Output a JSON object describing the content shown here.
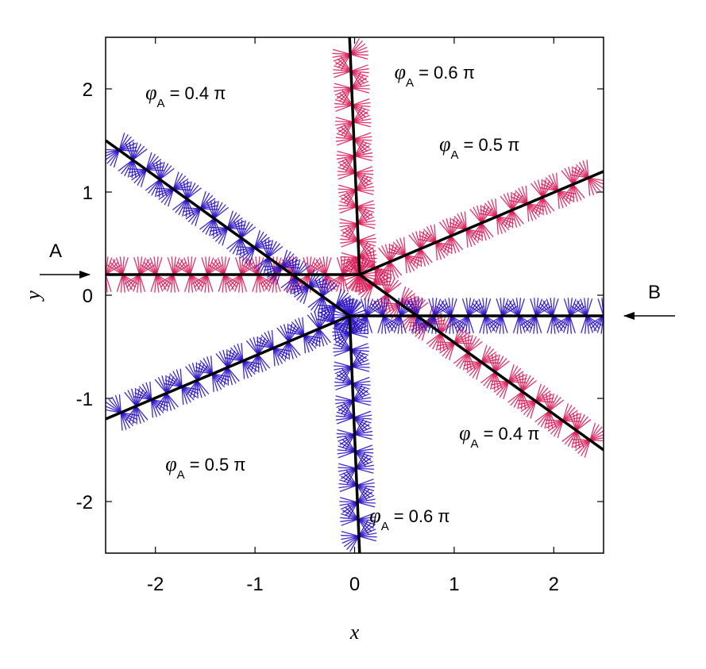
{
  "chart_data": {
    "type": "line",
    "xlabel": "x",
    "ylabel": "y",
    "xlim": [
      -2.5,
      2.5
    ],
    "ylim": [
      -2.5,
      2.5
    ],
    "xticks": [
      -2,
      -1,
      0,
      1,
      2
    ],
    "yticks": [
      -2,
      -1,
      0,
      1,
      2
    ],
    "xtick_labels": [
      "-2",
      "-1",
      "0",
      "1",
      "2"
    ],
    "ytick_labels": [
      "-2",
      "-1",
      "0",
      "1",
      "2"
    ],
    "grid": false,
    "colors": {
      "A": "#dc1e5a",
      "B": "#2a12c8",
      "line": "#000000"
    },
    "beams": [
      {
        "name": "A",
        "direction": "incoming from left",
        "y": 0.2
      },
      {
        "name": "B",
        "direction": "incoming from right",
        "y": -0.2
      }
    ],
    "series": [
      {
        "beam": "A",
        "phi": "0.4 π",
        "points": [
          [
            -2.5,
            0.2
          ],
          [
            0.05,
            0.2
          ],
          [
            2.5,
            -1.5
          ]
        ]
      },
      {
        "beam": "A",
        "phi": "0.5 π",
        "points": [
          [
            0.05,
            0.2
          ],
          [
            2.5,
            1.2
          ]
        ]
      },
      {
        "beam": "A",
        "phi": "0.6 π",
        "points": [
          [
            0.05,
            0.2
          ],
          [
            -0.05,
            2.5
          ]
        ]
      },
      {
        "beam": "B",
        "phi": "0.4 π",
        "points": [
          [
            2.5,
            -0.2
          ],
          [
            -0.05,
            -0.2
          ],
          [
            -2.5,
            1.5
          ]
        ]
      },
      {
        "beam": "B",
        "phi": "0.5 π",
        "points": [
          [
            -0.05,
            -0.2
          ],
          [
            -2.5,
            -1.2
          ]
        ]
      },
      {
        "beam": "B",
        "phi": "0.6 π",
        "points": [
          [
            -0.05,
            -0.2
          ],
          [
            0.05,
            -2.5
          ]
        ]
      }
    ],
    "annotations": [
      {
        "phi_symbol": "φ",
        "sub": "A",
        "text": "= 0.4 π",
        "x": -2.1,
        "y": 1.9
      },
      {
        "phi_symbol": "φ",
        "sub": "A",
        "text": "= 0.6 π",
        "x": 0.4,
        "y": 2.1
      },
      {
        "phi_symbol": "φ",
        "sub": "A",
        "text": "= 0.5 π",
        "x": 0.85,
        "y": 1.4
      },
      {
        "phi_symbol": "φ",
        "sub": "A",
        "text": "= 0.4 π",
        "x": 1.05,
        "y": -1.4
      },
      {
        "phi_symbol": "φ",
        "sub": "A",
        "text": "= 0.5 π",
        "x": -1.9,
        "y": -1.7
      },
      {
        "phi_symbol": "φ",
        "sub": "A",
        "text": "= 0.6 π",
        "x": 0.15,
        "y": -2.2
      }
    ],
    "beam_labels": [
      "A",
      "B"
    ]
  }
}
